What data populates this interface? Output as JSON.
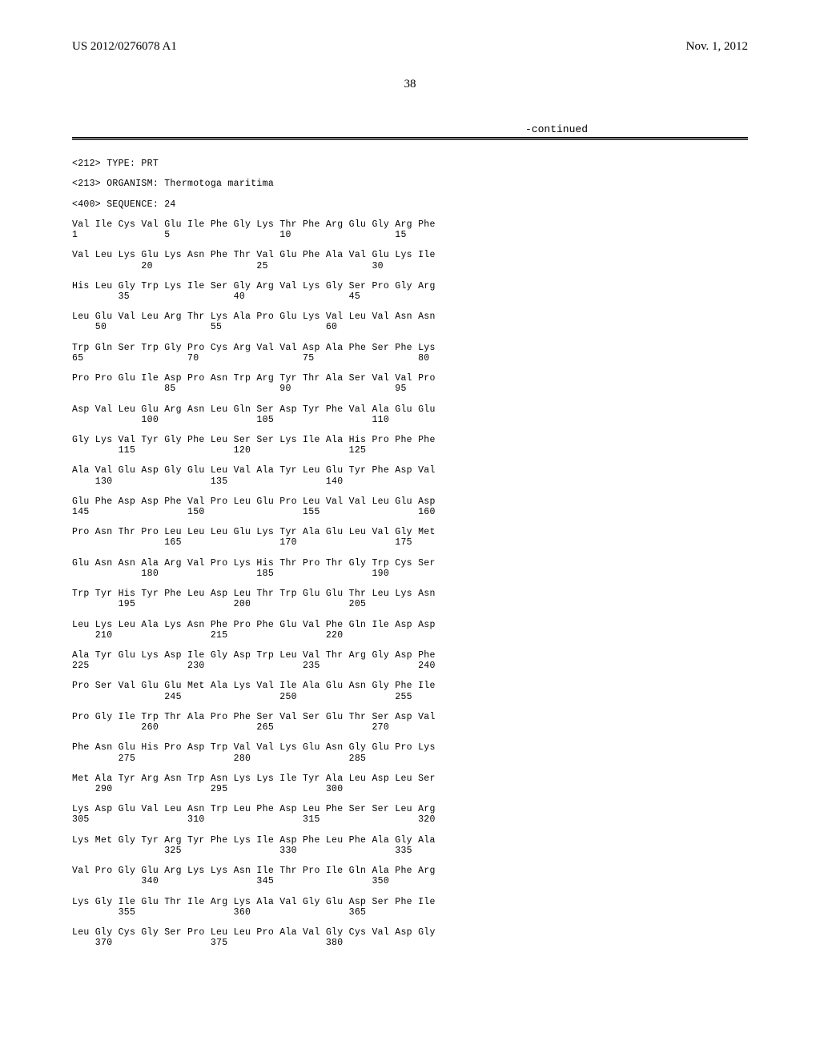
{
  "header": {
    "pub_number": "US 2012/0276078 A1",
    "pub_date": "Nov. 1, 2012",
    "page": "38",
    "continued": "-continued"
  },
  "meta": {
    "type_line": "<212> TYPE: PRT",
    "organism_line": "<213> ORGANISM: Thermotoga maritima",
    "seq_line": "<400> SEQUENCE: 24"
  },
  "rows": [
    {
      "aa": "Val Ile Cys Val Glu Ile Phe Gly Lys Thr Phe Arg Glu Gly Arg Phe",
      "nm": "1               5                   10                  15"
    },
    {
      "aa": "Val Leu Lys Glu Lys Asn Phe Thr Val Glu Phe Ala Val Glu Lys Ile",
      "nm": "            20                  25                  30"
    },
    {
      "aa": "His Leu Gly Trp Lys Ile Ser Gly Arg Val Lys Gly Ser Pro Gly Arg",
      "nm": "        35                  40                  45"
    },
    {
      "aa": "Leu Glu Val Leu Arg Thr Lys Ala Pro Glu Lys Val Leu Val Asn Asn",
      "nm": "    50                  55                  60"
    },
    {
      "aa": "Trp Gln Ser Trp Gly Pro Cys Arg Val Val Asp Ala Phe Ser Phe Lys",
      "nm": "65                  70                  75                  80"
    },
    {
      "aa": "Pro Pro Glu Ile Asp Pro Asn Trp Arg Tyr Thr Ala Ser Val Val Pro",
      "nm": "                85                  90                  95"
    },
    {
      "aa": "Asp Val Leu Glu Arg Asn Leu Gln Ser Asp Tyr Phe Val Ala Glu Glu",
      "nm": "            100                 105                 110"
    },
    {
      "aa": "Gly Lys Val Tyr Gly Phe Leu Ser Ser Lys Ile Ala His Pro Phe Phe",
      "nm": "        115                 120                 125"
    },
    {
      "aa": "Ala Val Glu Asp Gly Glu Leu Val Ala Tyr Leu Glu Tyr Phe Asp Val",
      "nm": "    130                 135                 140"
    },
    {
      "aa": "Glu Phe Asp Asp Phe Val Pro Leu Glu Pro Leu Val Val Leu Glu Asp",
      "nm": "145                 150                 155                 160"
    },
    {
      "aa": "Pro Asn Thr Pro Leu Leu Leu Glu Lys Tyr Ala Glu Leu Val Gly Met",
      "nm": "                165                 170                 175"
    },
    {
      "aa": "Glu Asn Asn Ala Arg Val Pro Lys His Thr Pro Thr Gly Trp Cys Ser",
      "nm": "            180                 185                 190"
    },
    {
      "aa": "Trp Tyr His Tyr Phe Leu Asp Leu Thr Trp Glu Glu Thr Leu Lys Asn",
      "nm": "        195                 200                 205"
    },
    {
      "aa": "Leu Lys Leu Ala Lys Asn Phe Pro Phe Glu Val Phe Gln Ile Asp Asp",
      "nm": "    210                 215                 220"
    },
    {
      "aa": "Ala Tyr Glu Lys Asp Ile Gly Asp Trp Leu Val Thr Arg Gly Asp Phe",
      "nm": "225                 230                 235                 240"
    },
    {
      "aa": "Pro Ser Val Glu Glu Met Ala Lys Val Ile Ala Glu Asn Gly Phe Ile",
      "nm": "                245                 250                 255"
    },
    {
      "aa": "Pro Gly Ile Trp Thr Ala Pro Phe Ser Val Ser Glu Thr Ser Asp Val",
      "nm": "            260                 265                 270"
    },
    {
      "aa": "Phe Asn Glu His Pro Asp Trp Val Val Lys Glu Asn Gly Glu Pro Lys",
      "nm": "        275                 280                 285"
    },
    {
      "aa": "Met Ala Tyr Arg Asn Trp Asn Lys Lys Ile Tyr Ala Leu Asp Leu Ser",
      "nm": "    290                 295                 300"
    },
    {
      "aa": "Lys Asp Glu Val Leu Asn Trp Leu Phe Asp Leu Phe Ser Ser Leu Arg",
      "nm": "305                 310                 315                 320"
    },
    {
      "aa": "Lys Met Gly Tyr Arg Tyr Phe Lys Ile Asp Phe Leu Phe Ala Gly Ala",
      "nm": "                325                 330                 335"
    },
    {
      "aa": "Val Pro Gly Glu Arg Lys Lys Asn Ile Thr Pro Ile Gln Ala Phe Arg",
      "nm": "            340                 345                 350"
    },
    {
      "aa": "Lys Gly Ile Glu Thr Ile Arg Lys Ala Val Gly Glu Asp Ser Phe Ile",
      "nm": "        355                 360                 365"
    },
    {
      "aa": "Leu Gly Cys Gly Ser Pro Leu Leu Pro Ala Val Gly Cys Val Asp Gly",
      "nm": "    370                 375                 380"
    }
  ]
}
